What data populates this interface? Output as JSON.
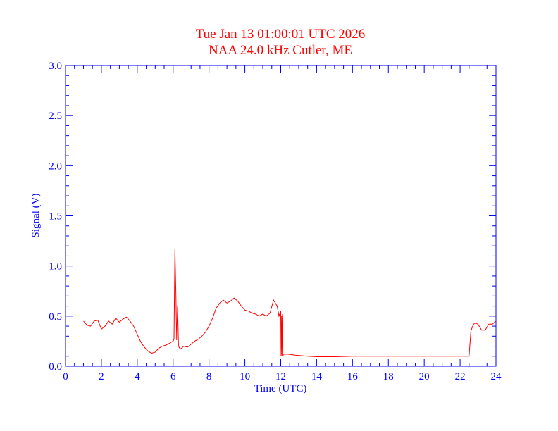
{
  "colors": {
    "title": "#ff0000",
    "axis": "#0000ff",
    "series": "#ff0000",
    "background": "#ffffff"
  },
  "chart_data": {
    "type": "line",
    "title": "Tue Jan 13 01:00:01 UTC 2026",
    "subtitle": "NAA 24.0 kHz Cutler, ME",
    "xlabel": "Time (UTC)",
    "ylabel": "Signal (V)",
    "xlim": [
      0,
      24
    ],
    "ylim": [
      0,
      3
    ],
    "x_ticks": [
      "0",
      "2",
      "4",
      "6",
      "8",
      "10",
      "12",
      "14",
      "16",
      "18",
      "20",
      "22",
      "24"
    ],
    "y_ticks": [
      "0.0",
      "0.5",
      "1.0",
      "1.5",
      "2.0",
      "2.5",
      "3.0"
    ],
    "grid": false,
    "series": [
      {
        "x": [
          1.0,
          1.2,
          1.4,
          1.6,
          1.8,
          2.0,
          2.2,
          2.4,
          2.6,
          2.8,
          3.0,
          3.2,
          3.4,
          3.6,
          3.8,
          4.0,
          4.2,
          4.4,
          4.6,
          4.8,
          5.0,
          5.2,
          5.4,
          5.6,
          5.8,
          6.0,
          6.05,
          6.1,
          6.15,
          6.2,
          6.25,
          6.3,
          6.4,
          6.6,
          6.8,
          7.0,
          7.2,
          7.4,
          7.6,
          7.8,
          8.0,
          8.2,
          8.4,
          8.6,
          8.8,
          9.0,
          9.2,
          9.4,
          9.6,
          9.8,
          10.0,
          10.2,
          10.4,
          10.6,
          10.8,
          11.0,
          11.2,
          11.4,
          11.6,
          11.8,
          11.9,
          12.0,
          12.02,
          12.05,
          12.07,
          12.1,
          12.12,
          12.15,
          12.2,
          12.4,
          12.8,
          13.5,
          14.0,
          15.0,
          16.0,
          17.0,
          18.0,
          19.0,
          20.0,
          21.0,
          22.0,
          22.5,
          22.6,
          22.7,
          22.8,
          23.0,
          23.2,
          23.4,
          23.6,
          23.8,
          24.0
        ],
        "y": [
          0.45,
          0.41,
          0.4,
          0.45,
          0.46,
          0.37,
          0.4,
          0.45,
          0.42,
          0.48,
          0.44,
          0.47,
          0.49,
          0.45,
          0.4,
          0.32,
          0.24,
          0.19,
          0.15,
          0.13,
          0.14,
          0.18,
          0.2,
          0.21,
          0.23,
          0.25,
          0.27,
          1.17,
          0.75,
          0.26,
          0.6,
          0.2,
          0.17,
          0.2,
          0.19,
          0.22,
          0.25,
          0.27,
          0.3,
          0.34,
          0.4,
          0.48,
          0.58,
          0.63,
          0.66,
          0.63,
          0.65,
          0.68,
          0.65,
          0.6,
          0.56,
          0.55,
          0.53,
          0.52,
          0.5,
          0.52,
          0.5,
          0.53,
          0.66,
          0.6,
          0.5,
          0.55,
          0.1,
          0.5,
          0.1,
          0.52,
          0.1,
          0.12,
          0.12,
          0.12,
          0.11,
          0.1,
          0.095,
          0.095,
          0.1,
          0.1,
          0.1,
          0.1,
          0.1,
          0.1,
          0.1,
          0.1,
          0.35,
          0.4,
          0.43,
          0.42,
          0.36,
          0.36,
          0.42,
          0.42,
          0.45
        ]
      }
    ]
  }
}
